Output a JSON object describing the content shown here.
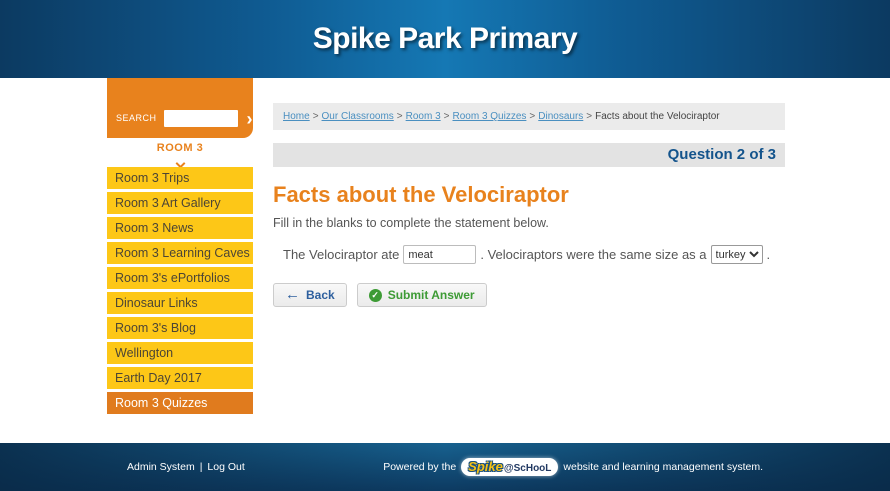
{
  "header": {
    "title": "Spike Park Primary"
  },
  "sidebar": {
    "search": {
      "label": "SEARCH",
      "button": "›",
      "placeholder": ""
    },
    "section_title": "ROOM 3",
    "items": [
      {
        "label": "Room 3 Trips",
        "active": false
      },
      {
        "label": "Room 3 Art Gallery",
        "active": false
      },
      {
        "label": "Room 3 News",
        "active": false
      },
      {
        "label": "Room 3 Learning Caves",
        "active": false
      },
      {
        "label": "Room 3's ePortfolios",
        "active": false
      },
      {
        "label": "Dinosaur Links",
        "active": false
      },
      {
        "label": "Room 3's Blog",
        "active": false
      },
      {
        "label": "Wellington",
        "active": false
      },
      {
        "label": "Earth Day 2017",
        "active": false
      },
      {
        "label": "Room 3 Quizzes",
        "active": true
      }
    ]
  },
  "breadcrumb": {
    "links": [
      "Home",
      "Our Classrooms",
      "Room 3",
      "Room 3 Quizzes",
      "Dinosaurs"
    ],
    "current": "Facts about the Velociraptor",
    "separator": ">"
  },
  "question_bar": {
    "progress": "Question 2 of 3"
  },
  "main": {
    "title": "Facts about the Velociraptor",
    "instructions": "Fill in the blanks to complete the statement below.",
    "statement": {
      "part1": "The Velociraptor ate",
      "blank1_value": "meat",
      "part2": ". Velociraptors were the same size as a",
      "blank2_value": "turkey",
      "part3": "."
    },
    "buttons": {
      "back": "Back",
      "submit": "Submit Answer",
      "check_glyph": "✓",
      "back_arrow_glyph": "←"
    }
  },
  "footer": {
    "admin_link": "Admin System",
    "logout_link": "Log Out",
    "divider": "|",
    "powered_prefix": "Powered by the",
    "logo_spike": "Spike",
    "logo_school": "@ScHooL",
    "powered_suffix": "website and learning management system."
  },
  "colors": {
    "orange": "#e8821d",
    "yellow": "#fdc717",
    "header_blue": "#1578b4",
    "navy": "#0c3a61",
    "link_blue": "#4a8fc0",
    "question_blue": "#14548c",
    "green": "#3d9b35",
    "back_blue": "#2d5f9e"
  }
}
